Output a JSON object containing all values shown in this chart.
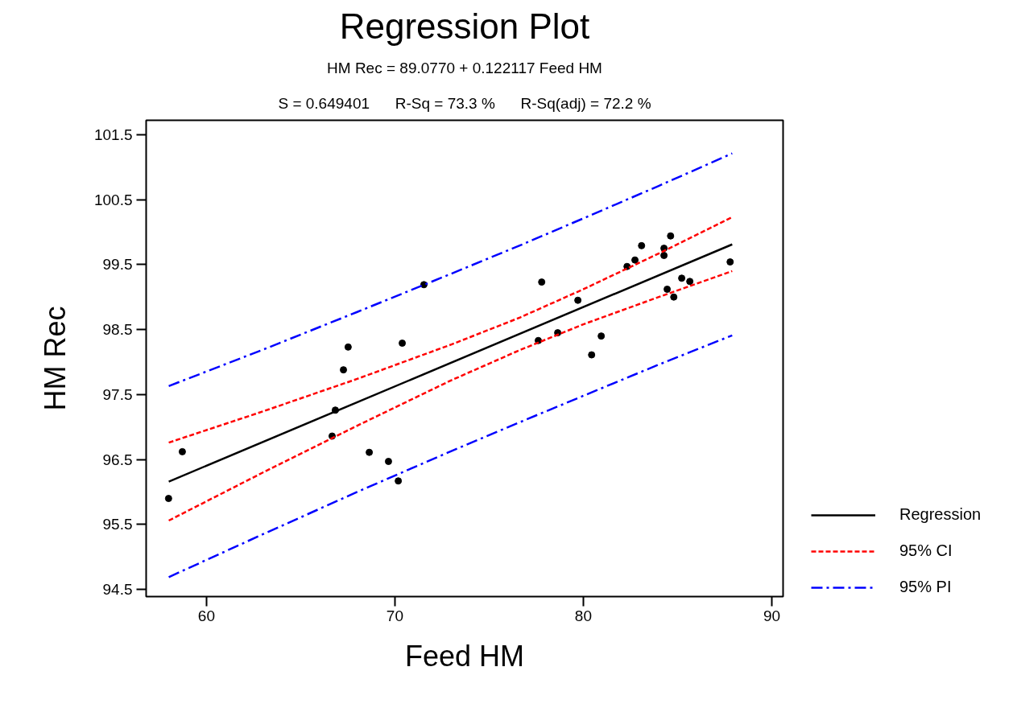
{
  "chart_data": {
    "type": "scatter",
    "title": "Regression Plot",
    "subtitle": "HM Rec = 89.0770 + 0.122117 Feed HM",
    "annotations": [
      "S = 0.649401      R-Sq = 73.3 %      R-Sq(adj) = 72.2 %"
    ],
    "xlabel": "Feed HM",
    "ylabel": "HM Rec",
    "xlim": [
      56.8,
      90.6
    ],
    "xticks": [
      60,
      70,
      80,
      90
    ],
    "ylim": [
      94.39,
      101.72
    ],
    "yticks": [
      94.5,
      95.5,
      96.5,
      97.5,
      98.5,
      99.5,
      100.5,
      101.5
    ],
    "grid": false,
    "legend": "right",
    "series": [
      {
        "color": "#000000",
        "marker": "circle",
        "x": [
          57.99,
          58.72,
          66.84,
          66.67,
          67.27,
          67.52,
          68.64,
          69.66,
          70.18,
          70.39,
          71.54,
          77.79,
          77.61,
          78.64,
          79.71,
          80.44,
          80.95,
          82.32,
          82.74,
          83.09,
          84.28,
          84.28,
          84.63,
          84.45,
          84.8,
          85.22,
          85.65,
          87.79
        ],
        "values": [
          95.9,
          96.62,
          97.26,
          96.86,
          97.88,
          98.23,
          96.61,
          96.47,
          96.17,
          98.29,
          99.19,
          99.23,
          98.33,
          98.45,
          98.95,
          98.11,
          98.4,
          99.47,
          99.57,
          99.79,
          99.75,
          99.64,
          99.94,
          99.12,
          99.0,
          99.29,
          99.24,
          99.54
        ]
      },
      {
        "type": "line",
        "name": "Regression",
        "color": "#000000",
        "line_style": "solid",
        "x": [
          58,
          87.9
        ],
        "values": [
          96.16,
          99.81
        ]
      },
      {
        "type": "line",
        "name": "95% CI",
        "color": "#ff0000",
        "line_style": "dashed",
        "x": [
          58,
          63,
          68,
          73,
          76.6,
          80,
          84,
          87.9
        ],
        "values": [
          96.76,
          97.24,
          97.74,
          98.27,
          98.68,
          99.12,
          99.67,
          100.23
        ]
      },
      {
        "type": "line",
        "color": "#ff0000",
        "line_style": "dashed",
        "x": [
          58,
          63,
          68,
          73,
          76.6,
          80,
          84,
          87.9
        ],
        "values": [
          95.56,
          96.3,
          97.02,
          97.72,
          98.18,
          98.58,
          99.0,
          99.4
        ]
      },
      {
        "type": "line",
        "name": "95% PI",
        "color": "#0000ff",
        "line_style": "dashdot",
        "x": [
          58,
          63,
          68,
          73,
          76.6,
          80,
          84,
          87.9
        ],
        "values": [
          97.63,
          98.19,
          98.77,
          99.36,
          99.79,
          100.21,
          100.71,
          101.21
        ]
      },
      {
        "type": "line",
        "color": "#0000ff",
        "line_style": "dashdot",
        "x": [
          58,
          63,
          68,
          73,
          76.6,
          80,
          84,
          87.9
        ],
        "values": [
          94.69,
          95.35,
          96.0,
          96.63,
          97.07,
          97.48,
          97.96,
          98.41
        ]
      }
    ]
  }
}
